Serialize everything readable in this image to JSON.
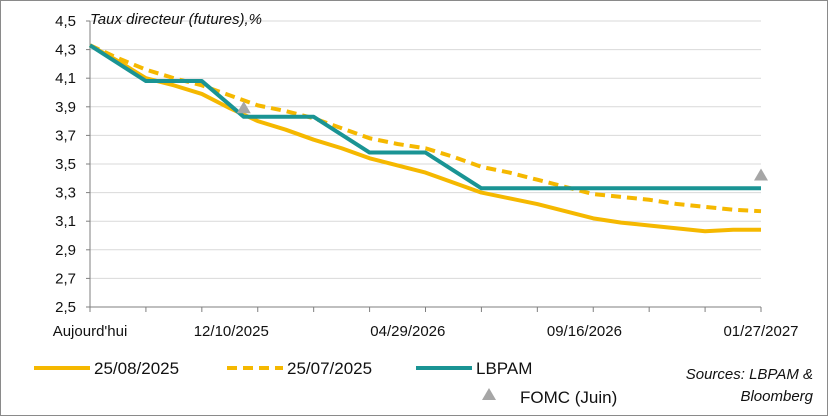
{
  "chart_data": {
    "type": "line",
    "title": "",
    "ylabel": "Taux directeur (futures),%",
    "xlabel": "",
    "ylim": [
      2.5,
      4.5
    ],
    "yticks": [
      "4,5",
      "4,3",
      "4,1",
      "3,9",
      "3,7",
      "3,5",
      "3,3",
      "3,1",
      "2,9",
      "2,7",
      "2,5"
    ],
    "ytick_values": [
      4.5,
      4.3,
      4.1,
      3.9,
      3.7,
      3.5,
      3.3,
      3.1,
      2.9,
      2.7,
      2.5
    ],
    "xtick_labels": [
      "Aujourd'hui",
      "12/10/2025",
      "04/29/2026",
      "09/16/2026",
      "01/27/2027"
    ],
    "xtick_positions": [
      0,
      4,
      9,
      14,
      19
    ],
    "x_count_points": 25,
    "x_major_ticks": [
      0,
      1,
      2,
      3,
      4,
      5,
      6,
      7,
      8,
      9,
      10,
      11,
      12,
      13,
      14,
      15,
      16,
      17,
      18,
      19,
      20,
      21,
      22,
      23,
      24
    ],
    "grid": true,
    "legend_position": "bottom",
    "series": [
      {
        "name": "25/08/2025",
        "style": "solid",
        "color": "#f5b800",
        "x": [
          0,
          1,
          2,
          3,
          4,
          5,
          6,
          7,
          8,
          9,
          10,
          11,
          12,
          13,
          14,
          15,
          16,
          17,
          18,
          19,
          20,
          21,
          22,
          23,
          24
        ],
        "values": [
          4.33,
          4.22,
          4.1,
          4.05,
          3.99,
          3.89,
          3.8,
          3.74,
          3.67,
          3.61,
          3.54,
          3.49,
          3.44,
          3.37,
          3.3,
          3.26,
          3.22,
          3.17,
          3.12,
          3.09,
          3.07,
          3.05,
          3.03,
          3.04,
          3.04
        ]
      },
      {
        "name": "25/07/2025",
        "style": "dashed",
        "color": "#f5b800",
        "x": [
          0,
          1,
          2,
          3,
          4,
          5,
          6,
          7,
          8,
          9,
          10,
          11,
          12,
          13,
          14,
          15,
          16,
          17,
          18,
          19,
          20,
          21,
          22,
          23,
          24
        ],
        "values": [
          4.33,
          4.24,
          4.16,
          4.1,
          4.05,
          3.98,
          3.91,
          3.87,
          3.82,
          3.75,
          3.68,
          3.64,
          3.61,
          3.55,
          3.48,
          3.44,
          3.39,
          3.34,
          3.29,
          3.27,
          3.25,
          3.22,
          3.2,
          3.18,
          3.17
        ]
      },
      {
        "name": "LBPAM",
        "style": "solid",
        "color": "#1a9494",
        "x": [
          0,
          2,
          4,
          5.5,
          6,
          8,
          10,
          12,
          14,
          16,
          18,
          20,
          22,
          24
        ],
        "values": [
          4.33,
          4.08,
          4.08,
          3.83,
          3.83,
          3.83,
          3.58,
          3.58,
          3.33,
          3.33,
          3.33,
          3.33,
          3.33,
          3.33
        ]
      }
    ],
    "markers": {
      "name": "FOMC (Juin)",
      "shape": "triangle",
      "color": "#a6a6a6",
      "points": [
        {
          "x": 5.5,
          "y": 3.89
        },
        {
          "x": 24,
          "y": 3.42
        }
      ]
    },
    "source": "Sources: LBPAM & Bloomberg",
    "source_line1": "Sources: LBPAM &",
    "source_line2": "Bloomberg"
  }
}
